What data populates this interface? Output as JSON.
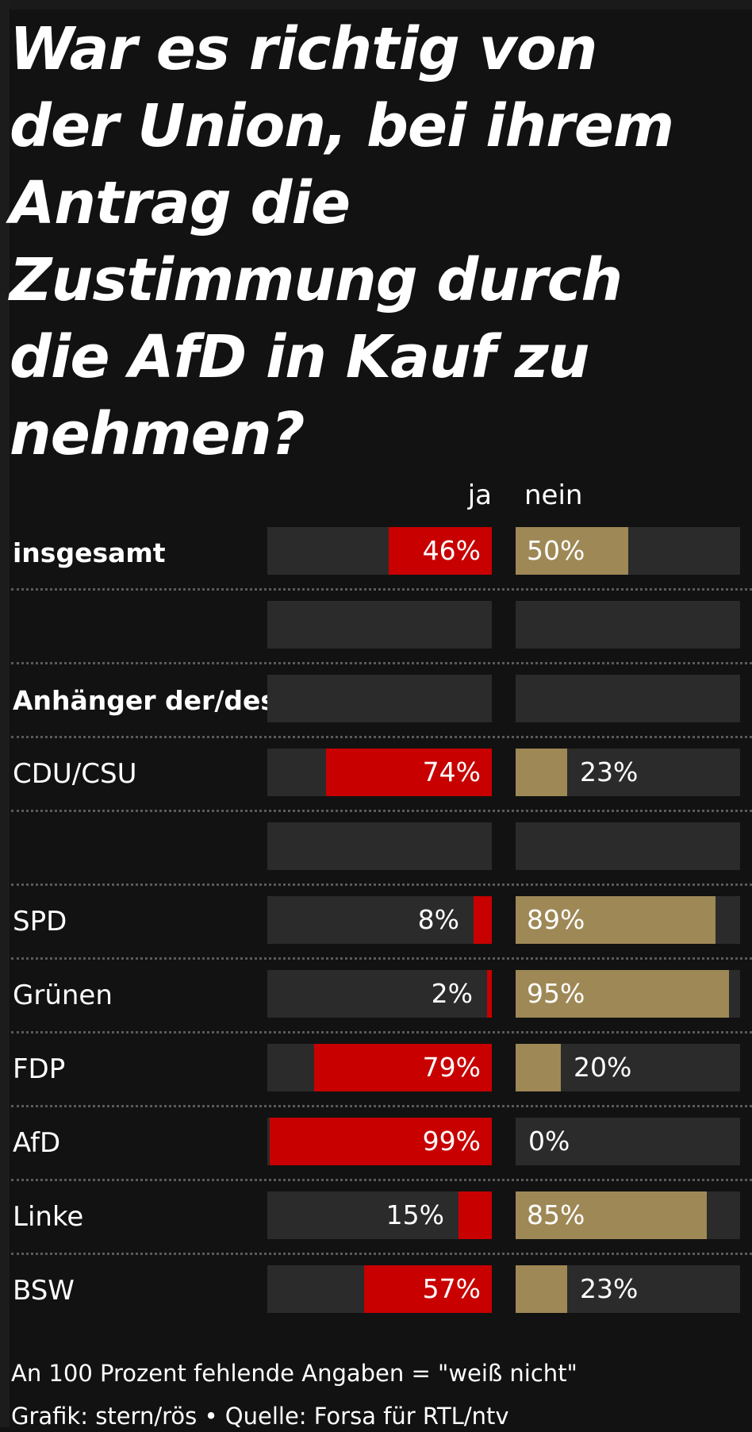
{
  "title": "War es richtig von der Union, bei ihrem Antrag die Zustimmung durch die AfD in Kauf zu nehmen?",
  "colors": {
    "background": "#121212",
    "track": "#2b2b2b",
    "ja": "#c80000",
    "nein": "#9e8856",
    "separator": "#5a5a5a"
  },
  "chart_data": {
    "type": "bar",
    "title": "War es richtig von der Union, bei ihrem Antrag die Zustimmung durch die AfD in Kauf zu nehmen?",
    "series_labels": {
      "ja": "ja",
      "nein": "nein"
    },
    "xlim": [
      0,
      100
    ],
    "unit": "%",
    "rows": [
      {
        "label": "insgesamt",
        "bold": true,
        "ja": 46,
        "nein": 50,
        "ja_label": "46%",
        "nein_label": "50%"
      },
      {
        "label": "",
        "bold": false,
        "ja": null,
        "nein": null,
        "ja_label": "",
        "nein_label": ""
      },
      {
        "label": "Anhänger der/des",
        "bold": true,
        "ja": null,
        "nein": null,
        "ja_label": "",
        "nein_label": ""
      },
      {
        "label": "CDU/CSU",
        "bold": false,
        "ja": 74,
        "nein": 23,
        "ja_label": "74%",
        "nein_label": "23%"
      },
      {
        "label": "",
        "bold": false,
        "ja": null,
        "nein": null,
        "ja_label": "",
        "nein_label": ""
      },
      {
        "label": "SPD",
        "bold": false,
        "ja": 8,
        "nein": 89,
        "ja_label": "8%",
        "nein_label": "89%"
      },
      {
        "label": "Grünen",
        "bold": false,
        "ja": 2,
        "nein": 95,
        "ja_label": "2%",
        "nein_label": "95%"
      },
      {
        "label": "FDP",
        "bold": false,
        "ja": 79,
        "nein": 20,
        "ja_label": "79%",
        "nein_label": "20%"
      },
      {
        "label": "AfD",
        "bold": false,
        "ja": 99,
        "nein": 0,
        "ja_label": "99%",
        "nein_label": "0%"
      },
      {
        "label": "Linke",
        "bold": false,
        "ja": 15,
        "nein": 85,
        "ja_label": "15%",
        "nein_label": "85%"
      },
      {
        "label": "BSW",
        "bold": false,
        "ja": 57,
        "nein": 23,
        "ja_label": "57%",
        "nein_label": "23%"
      }
    ]
  },
  "footnotes": {
    "note": "An 100 Prozent fehlende Angaben = \"weiß nicht\"",
    "credit": "Grafik: stern/rös • Quelle: Forsa für RTL/ntv"
  }
}
